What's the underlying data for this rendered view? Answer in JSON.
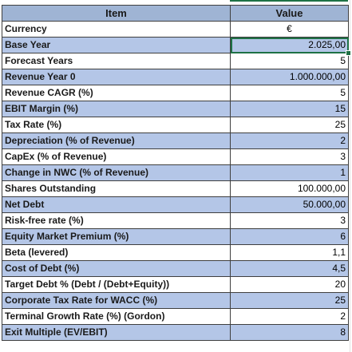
{
  "sheet": {
    "headers": {
      "item": "Item",
      "value": "Value"
    },
    "rows": [
      {
        "item": "Currency",
        "value": "€",
        "align": "center"
      },
      {
        "item": "Base Year",
        "value": "2.025,00",
        "selected": true
      },
      {
        "item": "Forecast Years",
        "value": "5"
      },
      {
        "item": "Revenue Year 0",
        "value": "1.000.000,00"
      },
      {
        "item": "Revenue CAGR (%)",
        "value": "5"
      },
      {
        "item": "EBIT Margin (%)",
        "value": "15"
      },
      {
        "item": "Tax Rate (%)",
        "value": "25"
      },
      {
        "item": "Depreciation (% of Revenue)",
        "value": "2"
      },
      {
        "item": "CapEx (% of Revenue)",
        "value": "3"
      },
      {
        "item": "Change in NWC (% of Revenue)",
        "value": "1"
      },
      {
        "item": "Shares Outstanding",
        "value": "100.000,00"
      },
      {
        "item": "Net Debt",
        "value": "50.000,00"
      },
      {
        "item": "Risk-free rate (%)",
        "value": "3"
      },
      {
        "item": "Equity Market Premium (%)",
        "value": "6"
      },
      {
        "item": "Beta (levered)",
        "value": "1,1"
      },
      {
        "item": "Cost of Debt (%)",
        "value": "4,5"
      },
      {
        "item": "Target Debt % (Debt / (Debt+Equity))",
        "value": "20"
      },
      {
        "item": "Corporate Tax Rate for WACC (%)",
        "value": "25"
      },
      {
        "item": "Terminal Growth Rate (%) (Gordon)",
        "value": "2"
      },
      {
        "item": "Exit Multiple (EV/EBIT)",
        "value": "8"
      }
    ]
  },
  "colors": {
    "header": "#9fb4d4",
    "band": "#b4c6e7",
    "selection": "#1e7145"
  }
}
